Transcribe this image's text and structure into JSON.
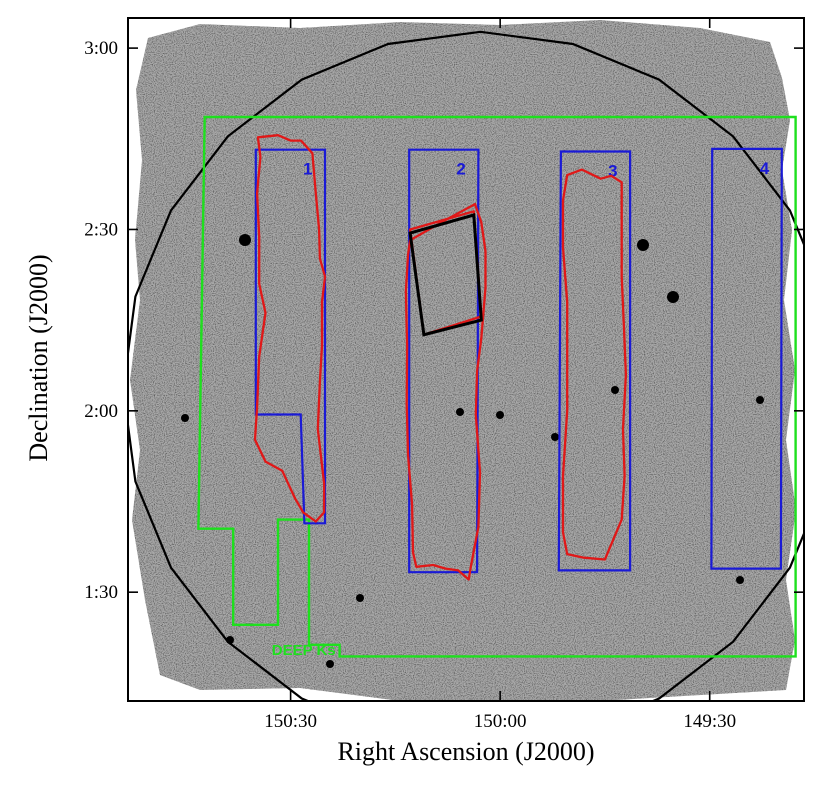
{
  "chart_data": {
    "type": "scatter",
    "title": "",
    "xlabel": "Right Ascension (J2000)",
    "ylabel": "Declination (J2000)",
    "xlim": [
      150.888,
      149.275
    ],
    "ylim": [
      1.2,
      3.083
    ],
    "x_ticks": [
      {
        "value": 150.5,
        "label": "150:30"
      },
      {
        "value": 150.0,
        "label": "150:00"
      },
      {
        "value": 149.5,
        "label": "149:30"
      }
    ],
    "y_ticks": [
      {
        "value": 1.5,
        "label": "1:30"
      },
      {
        "value": 2.0,
        "label": "2:00"
      },
      {
        "value": 2.5,
        "label": "2:30"
      },
      {
        "value": 3.0,
        "label": "3:00"
      }
    ],
    "colors": {
      "deep_ks": "#1ee01e",
      "fields": "#1a1ad6",
      "coverage": "#e01818",
      "circle": "#000000",
      "black_box": "#000000",
      "image_bg": "#a9a9a9"
    },
    "deep_ks_label": "DEEP Ks",
    "deep_ks_polygon": [
      [
        150.705,
        2.81
      ],
      [
        149.295,
        2.81
      ],
      [
        149.295,
        1.323
      ],
      [
        150.383,
        1.323
      ],
      [
        150.383,
        1.355
      ],
      [
        150.456,
        1.355
      ],
      [
        150.456,
        1.7
      ],
      [
        150.53,
        1.7
      ],
      [
        150.53,
        1.41
      ],
      [
        150.637,
        1.41
      ],
      [
        150.637,
        1.675
      ],
      [
        150.72,
        1.675
      ]
    ],
    "fields": [
      {
        "label": "1",
        "polygon": [
          [
            150.583,
            2.72
          ],
          [
            150.418,
            2.72
          ],
          [
            150.418,
            1.69
          ],
          [
            150.467,
            1.69
          ],
          [
            150.476,
            1.99
          ],
          [
            150.583,
            1.99
          ]
        ]
      },
      {
        "label": "2",
        "polygon": [
          [
            150.217,
            2.72
          ],
          [
            150.052,
            2.72
          ],
          [
            150.055,
            1.555
          ],
          [
            150.217,
            1.555
          ]
        ]
      },
      {
        "label": "3",
        "polygon": [
          [
            149.855,
            2.715
          ],
          [
            149.69,
            2.715
          ],
          [
            149.69,
            1.56
          ],
          [
            149.86,
            1.56
          ]
        ]
      },
      {
        "label": "4",
        "polygon": [
          [
            149.494,
            2.722
          ],
          [
            149.328,
            2.722
          ],
          [
            149.33,
            1.565
          ],
          [
            149.496,
            1.565
          ]
        ]
      }
    ],
    "coverage_contours": [
      {
        "label": "1",
        "polygon": [
          [
            150.578,
            2.754
          ],
          [
            150.53,
            2.76
          ],
          [
            150.5,
            2.745
          ],
          [
            150.475,
            2.745
          ],
          [
            150.448,
            2.71
          ],
          [
            150.44,
            2.6
          ],
          [
            150.432,
            2.5
          ],
          [
            150.43,
            2.42
          ],
          [
            150.418,
            2.37
          ],
          [
            150.425,
            2.3
          ],
          [
            150.425,
            2.18
          ],
          [
            150.43,
            2.08
          ],
          [
            150.435,
            1.95
          ],
          [
            150.42,
            1.8
          ],
          [
            150.42,
            1.72
          ],
          [
            150.44,
            1.695
          ],
          [
            150.47,
            1.72
          ],
          [
            150.49,
            1.76
          ],
          [
            150.52,
            1.835
          ],
          [
            150.56,
            1.86
          ],
          [
            150.585,
            1.92
          ],
          [
            150.58,
            2.01
          ],
          [
            150.575,
            2.15
          ],
          [
            150.56,
            2.27
          ],
          [
            150.575,
            2.35
          ],
          [
            150.575,
            2.48
          ],
          [
            150.58,
            2.6
          ],
          [
            150.572,
            2.7
          ]
        ]
      },
      {
        "label": "2",
        "polygon": [
          [
            150.215,
            2.47
          ],
          [
            150.14,
            2.52
          ],
          [
            150.06,
            2.57
          ],
          [
            150.045,
            2.52
          ],
          [
            150.035,
            2.44
          ],
          [
            150.035,
            2.34
          ],
          [
            150.045,
            2.2
          ],
          [
            150.055,
            2.11
          ],
          [
            150.058,
            1.99
          ],
          [
            150.048,
            1.83
          ],
          [
            150.052,
            1.68
          ],
          [
            150.07,
            1.57
          ],
          [
            150.075,
            1.535
          ],
          [
            150.1,
            1.56
          ],
          [
            150.13,
            1.565
          ],
          [
            150.16,
            1.575
          ],
          [
            150.2,
            1.57
          ],
          [
            150.208,
            1.61
          ],
          [
            150.21,
            1.74
          ],
          [
            150.22,
            1.88
          ],
          [
            150.223,
            2.02
          ],
          [
            150.222,
            2.18
          ],
          [
            150.225,
            2.33
          ],
          [
            150.22,
            2.43
          ]
        ]
      },
      {
        "label": "3",
        "polygon": [
          [
            149.84,
            2.65
          ],
          [
            149.805,
            2.665
          ],
          [
            149.76,
            2.64
          ],
          [
            149.735,
            2.648
          ],
          [
            149.71,
            2.63
          ],
          [
            149.71,
            2.52
          ],
          [
            149.71,
            2.37
          ],
          [
            149.705,
            2.24
          ],
          [
            149.7,
            2.1
          ],
          [
            149.707,
            1.95
          ],
          [
            149.703,
            1.82
          ],
          [
            149.71,
            1.7
          ],
          [
            149.75,
            1.59
          ],
          [
            149.8,
            1.595
          ],
          [
            149.84,
            1.605
          ],
          [
            149.85,
            1.665
          ],
          [
            149.85,
            1.82
          ],
          [
            149.84,
            2.0
          ],
          [
            149.84,
            2.15
          ],
          [
            149.84,
            2.3
          ],
          [
            149.85,
            2.45
          ],
          [
            149.85,
            2.58
          ]
        ]
      },
      {
        "label": "box",
        "polygon": [
          [
            150.215,
            2.5
          ],
          [
            150.063,
            2.55
          ],
          [
            150.045,
            2.26
          ],
          [
            150.182,
            2.21
          ]
        ]
      }
    ],
    "black_box": [
      [
        150.215,
        2.49
      ],
      [
        150.063,
        2.54
      ],
      [
        150.045,
        2.25
      ],
      [
        150.182,
        2.21
      ]
    ],
    "circle": {
      "center": [
        150.047,
        2.06
      ],
      "radius_deg": 0.985
    }
  }
}
